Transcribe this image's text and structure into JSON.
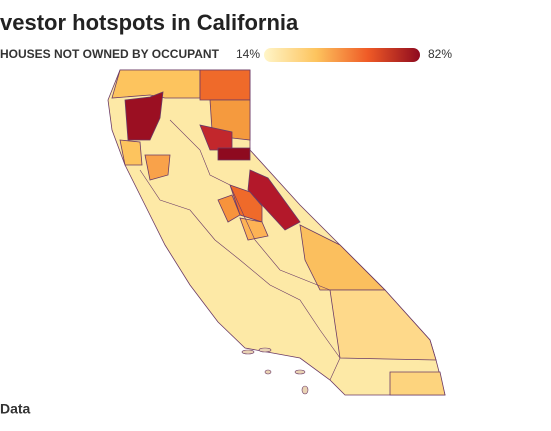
{
  "header": {
    "title": "vestor hotspots in California"
  },
  "legend": {
    "label": "HOUSES NOT OWNED BY OCCUPANT",
    "min_label": "14%",
    "max_label": "82%",
    "colors": [
      "#fff5c8",
      "#fdc45e",
      "#ef5a26",
      "#8e0a1f"
    ]
  },
  "footer": {
    "source": "Data"
  }
}
